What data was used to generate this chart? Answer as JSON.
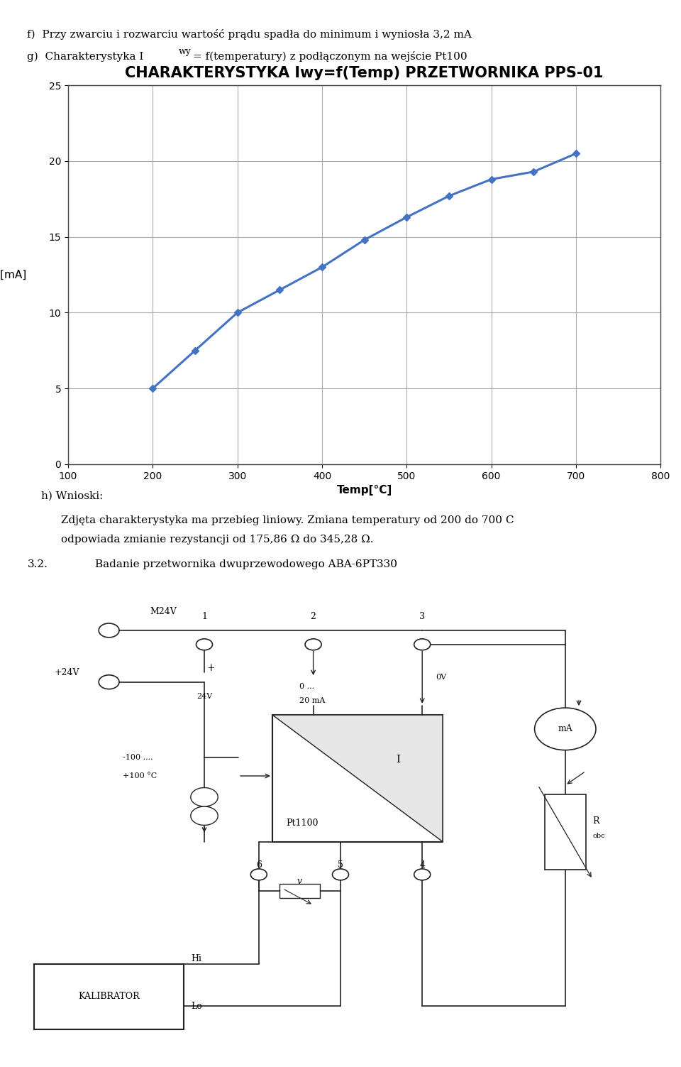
{
  "header_text_f": "f)  Przy zwarciu i rozwarciu wartość prądu spadła do minimum i wyniosła 3,2 mA",
  "header_text_g": "g)  Charakterystyka I",
  "header_subscript_wy": "wy",
  "header_text_g_rest": " = f(temperatury) z podłączonym na wejście Pt100",
  "chart_title": "CHARAKTERYSTYKA Iwy=f(Temp) PRZETWORNIKA PPS-01",
  "xlabel": "Temp[°C]",
  "ylabel": "Iwy[mA]",
  "x_data": [
    200,
    250,
    300,
    350,
    400,
    450,
    500,
    550,
    600,
    650,
    700
  ],
  "y_data": [
    5.0,
    7.5,
    10.0,
    11.5,
    13.0,
    14.8,
    16.3,
    17.7,
    18.8,
    19.3,
    20.5
  ],
  "xlim": [
    100,
    800
  ],
  "ylim": [
    0,
    25
  ],
  "xticks": [
    100,
    200,
    300,
    400,
    500,
    600,
    700,
    800
  ],
  "yticks": [
    0,
    5,
    10,
    15,
    20,
    25
  ],
  "line_color": "#4472C4",
  "marker": "D",
  "marker_size": 5,
  "grid_color": "#AAAAAA",
  "bg_color": "#FFFFFF",
  "conclusion_h": "h) Wnioski:",
  "conclusion_line1": "Zdjęta charakterystyka ma przebieg liniowy. Zmiana temperatury od 200 do 700 C",
  "conclusion_line2": "odpowiada zmianie rezystancji od 175,86 Ω do 345,28 Ω.",
  "section_32": "3.2.",
  "section_32_text": "Badanie przetwornika dwuprzewodowego ABA-6PT330"
}
